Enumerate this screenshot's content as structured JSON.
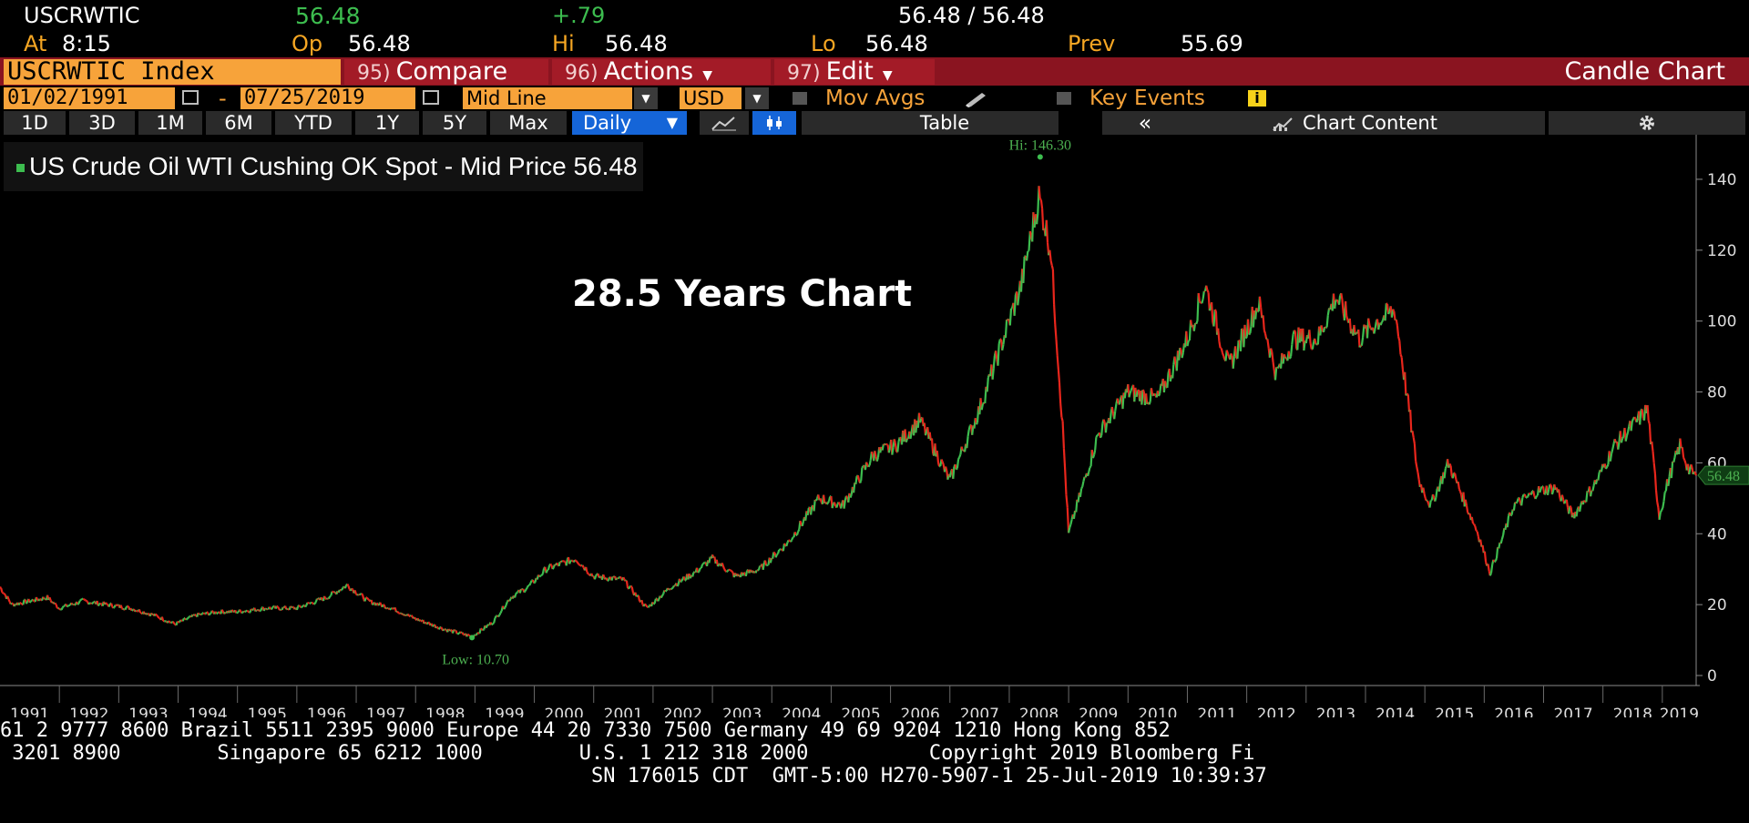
{
  "quote": {
    "ticker": "USCRWTIC",
    "last": "56.48",
    "change": "+.79",
    "bid_ask": "56.48 / 56.48",
    "at_label": "At",
    "time": "8:15",
    "open_label": "Op",
    "open": "56.48",
    "high_label": "Hi",
    "high": "56.48",
    "low_label": "Lo",
    "low": "56.48",
    "prev_label": "Prev",
    "prev": "55.69"
  },
  "toolbar": {
    "security": "USCRWTIC Index",
    "compare_num": "95)",
    "compare_label": "Compare",
    "actions_num": "96)",
    "actions_label": "Actions",
    "edit_num": "97)",
    "edit_label": "Edit",
    "chart_type_label": "Candle Chart"
  },
  "controls": {
    "start_date": "01/02/1991",
    "dash": "-",
    "end_date": "07/25/2019",
    "price_field": "Mid Line",
    "currency": "USD",
    "mov_avgs_label": "Mov Avgs",
    "key_events_label": "Key Events",
    "info_glyph": "i"
  },
  "ranges": {
    "items": [
      "1D",
      "3D",
      "1M",
      "6M",
      "YTD",
      "1Y",
      "5Y",
      "Max"
    ],
    "period": "Daily",
    "table_label": "Table",
    "collapse_glyph": "«",
    "chart_content_label": "Chart Content"
  },
  "legend": {
    "text": "US Crude Oil WTI Cushing OK Spot - Mid Price",
    "value": "56.48"
  },
  "headline": "28.5 Years Chart",
  "colors": {
    "up": "#3dbd4f",
    "down": "#e8261c",
    "accent": "#f7a33a",
    "toolbar_red": "#8a1420"
  },
  "chart_data": {
    "type": "line",
    "title": "",
    "xlabel": "",
    "ylabel": "",
    "xlim": [
      1991.0,
      2019.57
    ],
    "ylim": [
      0,
      150
    ],
    "y_ticks": [
      0,
      20,
      40,
      60,
      80,
      100,
      120,
      140
    ],
    "x_tick_labels": [
      "1991",
      "1992",
      "1993",
      "1994",
      "1995",
      "1996",
      "1997",
      "1998",
      "1999",
      "2000",
      "2001",
      "2002",
      "2003",
      "2004",
      "2005",
      "2006",
      "2007",
      "2008",
      "2009",
      "2010",
      "2011",
      "2012",
      "2013",
      "2014",
      "2015",
      "2016",
      "2017",
      "2018",
      "2019"
    ],
    "grid": false,
    "series": [
      {
        "x": [
          1991.0,
          1991.2,
          1991.5,
          1991.8,
          1992.0,
          1992.4,
          1992.8,
          1993.2,
          1993.6,
          1993.95,
          1994.3,
          1994.7,
          1995.0,
          1995.5,
          1996.0,
          1996.5,
          1996.85,
          1997.2,
          1997.6,
          1998.0,
          1998.5,
          1998.95,
          1999.3,
          1999.6,
          1999.9,
          2000.2,
          2000.7,
          2001.0,
          2001.5,
          2001.9,
          2002.3,
          2002.7,
          2003.0,
          2003.4,
          2003.8,
          2004.3,
          2004.8,
          2005.2,
          2005.7,
          2006.1,
          2006.5,
          2007.0,
          2007.5,
          2007.9,
          2008.2,
          2008.5,
          2008.7,
          2008.9,
          2009.0,
          2009.5,
          2010.0,
          2010.5,
          2011.0,
          2011.3,
          2011.7,
          2012.2,
          2012.5,
          2012.8,
          2013.2,
          2013.5,
          2013.9,
          2014.2,
          2014.5,
          2014.9,
          2015.1,
          2015.4,
          2015.9,
          2016.1,
          2016.5,
          2016.9,
          2017.2,
          2017.5,
          2017.9,
          2018.2,
          2018.75,
          2018.95,
          2019.1,
          2019.3,
          2019.45,
          2019.57
        ],
        "y": [
          25,
          20,
          21,
          22,
          19,
          21,
          20,
          19,
          17,
          14.5,
          17,
          18,
          18,
          19,
          19,
          22,
          25.5,
          21,
          19,
          16,
          13,
          11,
          15,
          22,
          25,
          30,
          33,
          28,
          27,
          19,
          25,
          29,
          33,
          28,
          30,
          38,
          50,
          48,
          62,
          65,
          72,
          55,
          75,
          95,
          110,
          135,
          120,
          70,
          40,
          68,
          80,
          78,
          95,
          110,
          87,
          105,
          85,
          95,
          95,
          107,
          95,
          100,
          103,
          55,
          48,
          60,
          40,
          29,
          48,
          52,
          53,
          45,
          55,
          65,
          75,
          45,
          55,
          65,
          58,
          56.48
        ]
      }
    ],
    "annotations": {
      "high": {
        "x": 2008.52,
        "y": 146.3,
        "label": "Hi: 146.30"
      },
      "low": {
        "x": 1998.95,
        "y": 10.7,
        "label": "Low: 10.70"
      },
      "last": {
        "y": 56.48,
        "label": "56.48"
      }
    }
  },
  "footer": {
    "line1": "61 2 9777 8600 Brazil 5511 2395 9000 Europe 44 20 7330 7500 Germany 49 69 9204 1210 Hong Kong 852",
    "line2": " 3201 8900        Singapore 65 6212 1000        U.S. 1 212 318 2000          Copyright 2019 Bloomberg Fi",
    "line3": "                                                 SN 176015 CDT  GMT-5:00 H270-5907-1 25-Jul-2019 10:39:37"
  }
}
